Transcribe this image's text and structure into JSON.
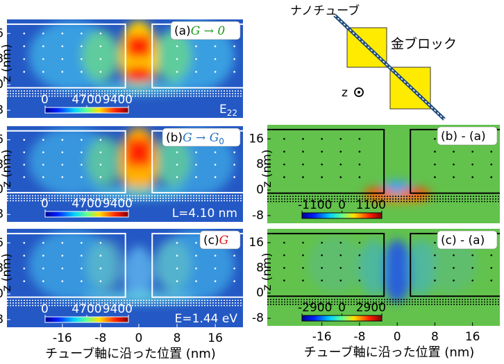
{
  "chart_data": [
    {
      "type": "heatmap",
      "panel_label": "(a)",
      "formula": "G → 0",
      "formula_color": "#1a9a1a",
      "annotation": "E",
      "annotation_sub": "22",
      "ylabel": "z (nm)",
      "xlim": [
        -27.6,
        21.8
      ],
      "ylim": [
        -10.4,
        20.4
      ],
      "yticks": [
        -8,
        0,
        8,
        16
      ],
      "colormap": "jet",
      "colorbar_ticks": [
        0,
        4700,
        9400
      ],
      "outline_color": "#ffffff"
    },
    {
      "type": "heatmap",
      "panel_label": "(b)",
      "formula": "G → G",
      "formula_sub": "0",
      "formula_color": "#1f6fbf",
      "annotation": "L=4.10 nm",
      "ylabel": "z (nm)",
      "xlim": [
        -27.6,
        21.8
      ],
      "ylim": [
        -10.4,
        20.4
      ],
      "yticks": [
        -8,
        0,
        8,
        16
      ],
      "colormap": "jet",
      "colorbar_ticks": [
        0,
        4700,
        9400
      ],
      "outline_color": "#ffffff"
    },
    {
      "type": "heatmap",
      "panel_label": "(c)",
      "formula": "G",
      "formula_color": "#e01010",
      "annotation": "E=1.44 eV",
      "ylabel": "z (nm)",
      "xlim": [
        -27.6,
        21.8
      ],
      "ylim": [
        -10.4,
        20.4
      ],
      "yticks": [
        -8,
        0,
        8,
        16
      ],
      "xticks": [
        -16,
        -8,
        0,
        8,
        16
      ],
      "xlabel": "チューブ軸に沿った位置 (nm)",
      "colormap": "jet",
      "colorbar_ticks": [
        0,
        4700,
        9400
      ],
      "outline_color": "#ffffff"
    },
    {
      "type": "heatmap",
      "panel_label": "(b) - (a)",
      "ylabel": "z (nm)",
      "xlim": [
        -27.6,
        21.8
      ],
      "ylim": [
        -10.4,
        20.4
      ],
      "yticks": [
        -8,
        0,
        8,
        16
      ],
      "colormap": "jet",
      "colorbar_ticks": [
        -1100,
        0,
        1100
      ],
      "outline_color": "#000000"
    },
    {
      "type": "heatmap",
      "panel_label": "(c) - (a)",
      "ylabel": "z (nm)",
      "xlim": [
        -27.6,
        21.8
      ],
      "ylim": [
        -10.4,
        20.4
      ],
      "yticks": [
        -8,
        0,
        8,
        16
      ],
      "xticks": [
        -16,
        -8,
        0,
        8,
        16
      ],
      "xlabel": "チューブ軸に沿った位置 (nm)",
      "colormap": "jet",
      "colorbar_ticks": [
        -2900,
        0,
        2900
      ],
      "outline_color": "#000000"
    }
  ],
  "diagram": {
    "tube_label": "ナノチューブ",
    "block_label": "金ブロック",
    "axis_label": "z"
  }
}
